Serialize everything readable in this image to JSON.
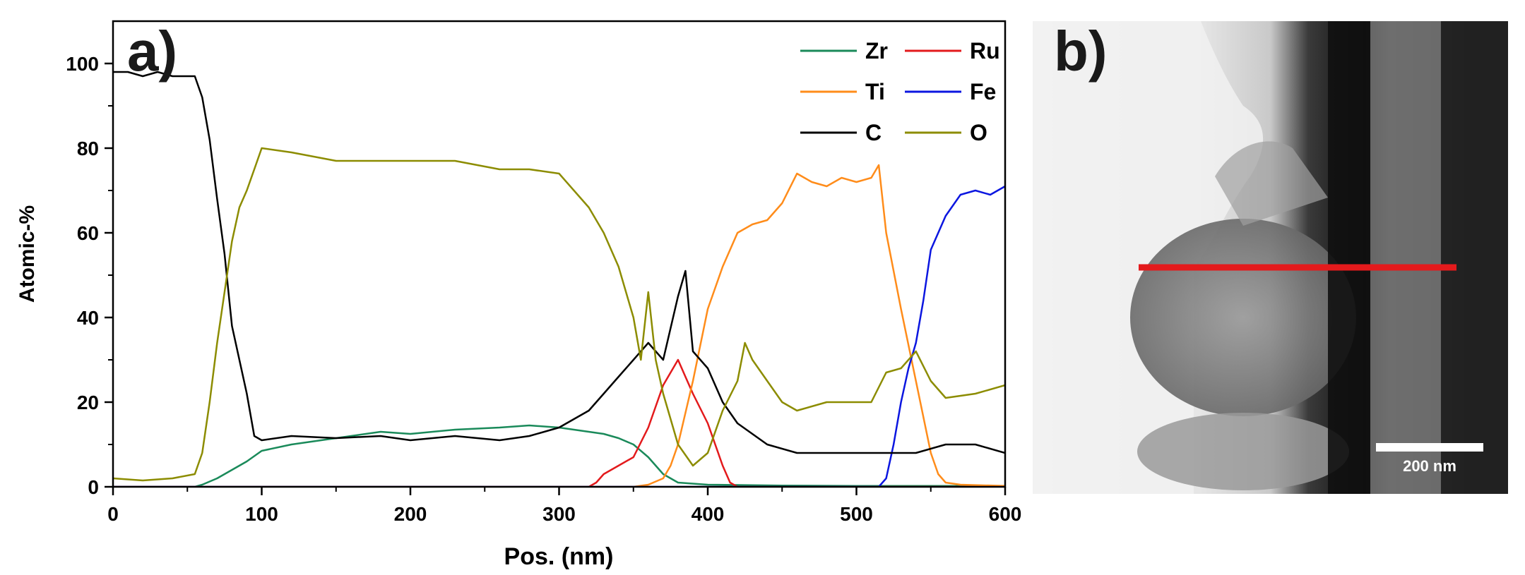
{
  "panel_a": {
    "label": "a)",
    "chart_data": {
      "type": "line",
      "title": "",
      "xlabel": "Pos. (nm)",
      "ylabel": "Atomic-%",
      "xlim": [
        0,
        600
      ],
      "ylim": [
        0,
        110
      ],
      "xticks": [
        0,
        100,
        200,
        300,
        400,
        500,
        600
      ],
      "yticks": [
        0,
        20,
        40,
        60,
        80,
        100
      ],
      "grid": false,
      "legend_position": "top-right",
      "series": [
        {
          "name": "Zr",
          "color": "#1a8a5a",
          "x": [
            0,
            55,
            60,
            70,
            80,
            90,
            100,
            120,
            150,
            180,
            200,
            230,
            260,
            280,
            300,
            320,
            330,
            340,
            350,
            360,
            370,
            380,
            400,
            450,
            500,
            550,
            600
          ],
          "y": [
            0,
            0,
            0.5,
            2,
            4,
            6,
            8.5,
            10,
            11.5,
            13,
            12.5,
            13.5,
            14,
            14.5,
            14,
            13,
            12.5,
            11.5,
            10,
            7,
            3,
            1,
            0.5,
            0.3,
            0.2,
            0.2,
            0.2
          ]
        },
        {
          "name": "Ru",
          "color": "#e31a1c",
          "x": [
            0,
            320,
            325,
            330,
            340,
            350,
            360,
            370,
            380,
            385,
            390,
            400,
            410,
            415,
            420,
            600
          ],
          "y": [
            0,
            0,
            1,
            3,
            5,
            7,
            14,
            24,
            30,
            26,
            22,
            15,
            5,
            1,
            0,
            0
          ]
        },
        {
          "name": "Ti",
          "color": "#ff8c1a",
          "x": [
            0,
            350,
            360,
            370,
            375,
            380,
            390,
            400,
            410,
            420,
            430,
            440,
            450,
            460,
            470,
            480,
            490,
            500,
            510,
            515,
            520,
            530,
            540,
            550,
            555,
            560,
            570,
            600
          ],
          "y": [
            0,
            0,
            0.5,
            2,
            5,
            10,
            25,
            42,
            52,
            60,
            62,
            63,
            67,
            74,
            72,
            71,
            73,
            72,
            73,
            76,
            60,
            42,
            25,
            8,
            3,
            1,
            0.5,
            0.2
          ]
        },
        {
          "name": "Fe",
          "color": "#0b16e0",
          "x": [
            0,
            515,
            520,
            525,
            530,
            535,
            540,
            545,
            550,
            560,
            570,
            580,
            590,
            600
          ],
          "y": [
            0,
            0,
            2,
            10,
            20,
            28,
            34,
            44,
            56,
            64,
            69,
            70,
            69,
            71
          ]
        },
        {
          "name": "C",
          "color": "#000000",
          "x": [
            0,
            10,
            20,
            30,
            40,
            50,
            55,
            60,
            65,
            70,
            75,
            80,
            85,
            90,
            95,
            100,
            120,
            150,
            180,
            200,
            230,
            260,
            280,
            300,
            320,
            330,
            340,
            350,
            360,
            370,
            380,
            385,
            390,
            400,
            410,
            420,
            440,
            460,
            500,
            520,
            540,
            560,
            580,
            600
          ],
          "y": [
            98,
            98,
            97,
            98,
            97,
            97,
            97,
            92,
            82,
            68,
            55,
            38,
            30,
            22,
            12,
            11,
            12,
            11.5,
            12,
            11,
            12,
            11,
            12,
            14,
            18,
            22,
            26,
            30,
            34,
            30,
            45,
            51,
            32,
            28,
            20,
            15,
            10,
            8,
            8,
            8,
            8,
            10,
            10,
            8
          ]
        },
        {
          "name": "O",
          "color": "#8c8c00",
          "x": [
            0,
            20,
            40,
            55,
            60,
            65,
            70,
            75,
            80,
            85,
            90,
            95,
            100,
            120,
            150,
            180,
            200,
            230,
            260,
            280,
            300,
            320,
            330,
            340,
            350,
            355,
            360,
            365,
            370,
            380,
            390,
            400,
            410,
            420,
            425,
            430,
            440,
            450,
            460,
            480,
            500,
            510,
            520,
            530,
            540,
            550,
            560,
            580,
            600
          ],
          "y": [
            2,
            1.5,
            2,
            3,
            8,
            20,
            34,
            46,
            58,
            66,
            70,
            75,
            80,
            79,
            77,
            77,
            77,
            77,
            75,
            75,
            74,
            66,
            60,
            52,
            40,
            30,
            46,
            30,
            22,
            10,
            5,
            8,
            18,
            25,
            34,
            30,
            25,
            20,
            18,
            20,
            20,
            20,
            27,
            28,
            32,
            25,
            21,
            22,
            24
          ]
        }
      ]
    }
  },
  "panel_b": {
    "label": "b)",
    "scale_bar_label": "200 nm",
    "profile_line_color": "#e41a1c"
  }
}
